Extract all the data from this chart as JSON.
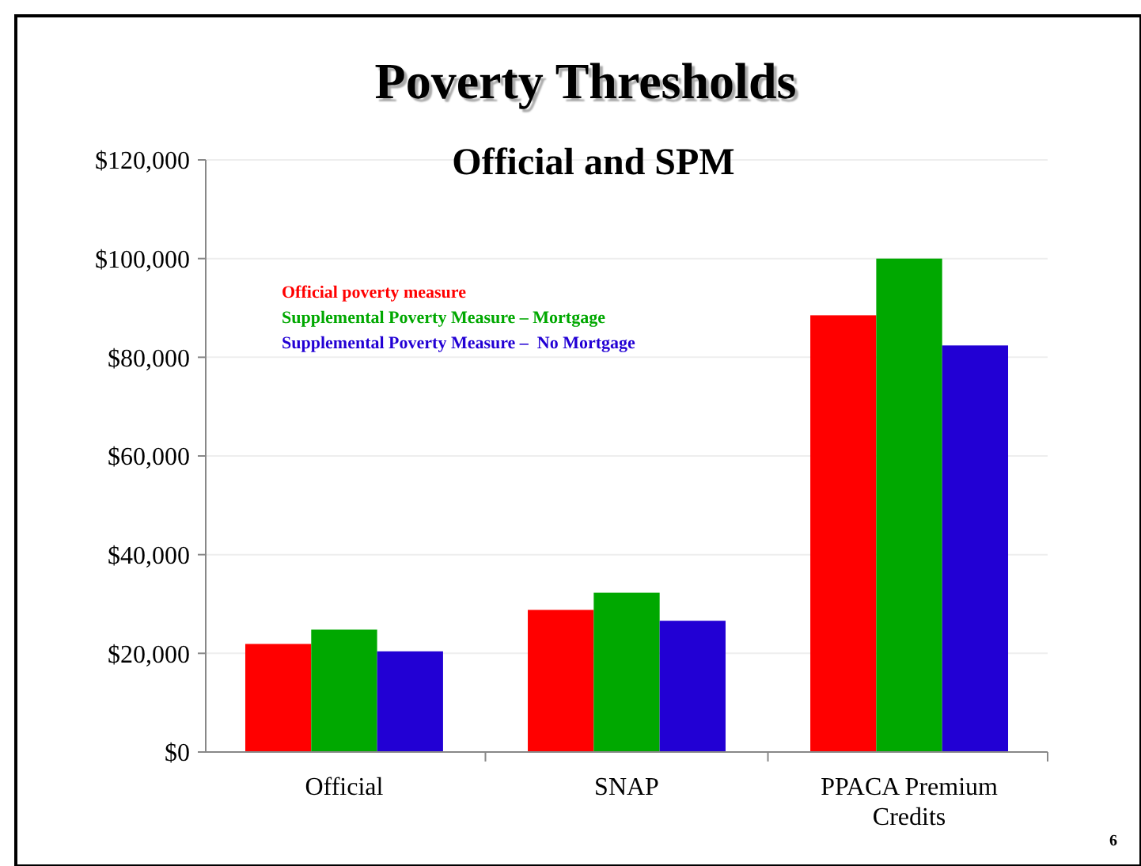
{
  "chart_data": {
    "type": "bar",
    "title": "Poverty Thresholds",
    "subtitle": "Official and SPM",
    "categories": [
      "Official",
      "SNAP",
      "PPACA Premium Credits"
    ],
    "series": [
      {
        "name": "Official poverty measure",
        "color": "#ff0000",
        "values": [
          21900,
          28800,
          88500
        ]
      },
      {
        "name": "Supplemental Poverty Measure – Mortgage",
        "color": "#00a800",
        "values": [
          24800,
          32300,
          100000
        ]
      },
      {
        "name": "Supplemental Poverty Measure –  No Mortgage",
        "color": "#2200d4",
        "values": [
          20400,
          26600,
          82400
        ]
      }
    ],
    "ylim": [
      0,
      120000
    ],
    "yticks": [
      {
        "value": 0,
        "label": "$0"
      },
      {
        "value": 20000,
        "label": "$20,000"
      },
      {
        "value": 40000,
        "label": "$40,000"
      },
      {
        "value": 60000,
        "label": "$60,000"
      },
      {
        "value": 80000,
        "label": "$80,000"
      },
      {
        "value": 100000,
        "label": "$100,000"
      },
      {
        "value": 120000,
        "label": "$120,000"
      }
    ],
    "grid": "y",
    "legend": "top left",
    "annotations": [
      "6"
    ]
  }
}
